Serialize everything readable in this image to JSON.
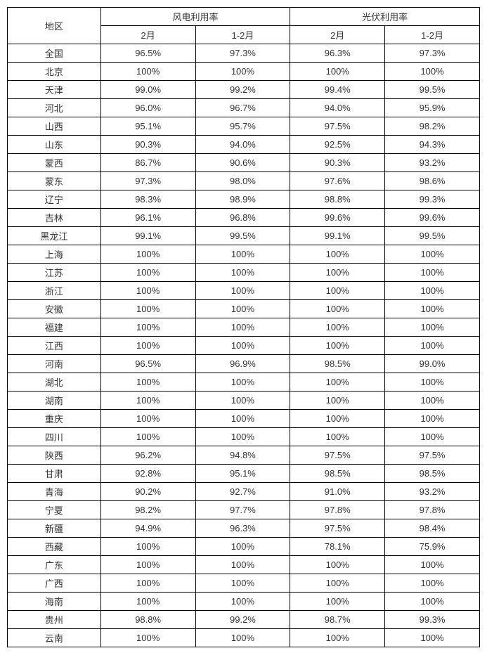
{
  "headers": {
    "region": "地区",
    "wind": "风电利用率",
    "solar": "光伏利用率",
    "feb": "2月",
    "janfeb": "1-2月"
  },
  "rows": [
    {
      "region": "全国",
      "wind_feb": "96.5%",
      "wind_janfeb": "97.3%",
      "solar_feb": "96.3%",
      "solar_janfeb": "97.3%"
    },
    {
      "region": "北京",
      "wind_feb": "100%",
      "wind_janfeb": "100%",
      "solar_feb": "100%",
      "solar_janfeb": "100%"
    },
    {
      "region": "天津",
      "wind_feb": "99.0%",
      "wind_janfeb": "99.2%",
      "solar_feb": "99.4%",
      "solar_janfeb": "99.5%"
    },
    {
      "region": "河北",
      "wind_feb": "96.0%",
      "wind_janfeb": "96.7%",
      "solar_feb": "94.0%",
      "solar_janfeb": "95.9%"
    },
    {
      "region": "山西",
      "wind_feb": "95.1%",
      "wind_janfeb": "95.7%",
      "solar_feb": "97.5%",
      "solar_janfeb": "98.2%"
    },
    {
      "region": "山东",
      "wind_feb": "90.3%",
      "wind_janfeb": "94.0%",
      "solar_feb": "92.5%",
      "solar_janfeb": "94.3%"
    },
    {
      "region": "蒙西",
      "wind_feb": "86.7%",
      "wind_janfeb": "90.6%",
      "solar_feb": "90.3%",
      "solar_janfeb": "93.2%"
    },
    {
      "region": "蒙东",
      "wind_feb": "97.3%",
      "wind_janfeb": "98.0%",
      "solar_feb": "97.6%",
      "solar_janfeb": "98.6%"
    },
    {
      "region": "辽宁",
      "wind_feb": "98.3%",
      "wind_janfeb": "98.9%",
      "solar_feb": "98.8%",
      "solar_janfeb": "99.3%"
    },
    {
      "region": "吉林",
      "wind_feb": "96.1%",
      "wind_janfeb": "96.8%",
      "solar_feb": "99.6%",
      "solar_janfeb": "99.6%"
    },
    {
      "region": "黑龙江",
      "wind_feb": "99.1%",
      "wind_janfeb": "99.5%",
      "solar_feb": "99.1%",
      "solar_janfeb": "99.5%"
    },
    {
      "region": "上海",
      "wind_feb": "100%",
      "wind_janfeb": "100%",
      "solar_feb": "100%",
      "solar_janfeb": "100%"
    },
    {
      "region": "江苏",
      "wind_feb": "100%",
      "wind_janfeb": "100%",
      "solar_feb": "100%",
      "solar_janfeb": "100%"
    },
    {
      "region": "浙江",
      "wind_feb": "100%",
      "wind_janfeb": "100%",
      "solar_feb": "100%",
      "solar_janfeb": "100%"
    },
    {
      "region": "安徽",
      "wind_feb": "100%",
      "wind_janfeb": "100%",
      "solar_feb": "100%",
      "solar_janfeb": "100%"
    },
    {
      "region": "福建",
      "wind_feb": "100%",
      "wind_janfeb": "100%",
      "solar_feb": "100%",
      "solar_janfeb": "100%"
    },
    {
      "region": "江西",
      "wind_feb": "100%",
      "wind_janfeb": "100%",
      "solar_feb": "100%",
      "solar_janfeb": "100%"
    },
    {
      "region": "河南",
      "wind_feb": "96.5%",
      "wind_janfeb": "96.9%",
      "solar_feb": "98.5%",
      "solar_janfeb": "99.0%"
    },
    {
      "region": "湖北",
      "wind_feb": "100%",
      "wind_janfeb": "100%",
      "solar_feb": "100%",
      "solar_janfeb": "100%"
    },
    {
      "region": "湖南",
      "wind_feb": "100%",
      "wind_janfeb": "100%",
      "solar_feb": "100%",
      "solar_janfeb": "100%"
    },
    {
      "region": "重庆",
      "wind_feb": "100%",
      "wind_janfeb": "100%",
      "solar_feb": "100%",
      "solar_janfeb": "100%"
    },
    {
      "region": "四川",
      "wind_feb": "100%",
      "wind_janfeb": "100%",
      "solar_feb": "100%",
      "solar_janfeb": "100%"
    },
    {
      "region": "陕西",
      "wind_feb": "96.2%",
      "wind_janfeb": "94.8%",
      "solar_feb": "97.5%",
      "solar_janfeb": "97.5%"
    },
    {
      "region": "甘肃",
      "wind_feb": "92.8%",
      "wind_janfeb": "95.1%",
      "solar_feb": "98.5%",
      "solar_janfeb": "98.5%"
    },
    {
      "region": "青海",
      "wind_feb": "90.2%",
      "wind_janfeb": "92.7%",
      "solar_feb": "91.0%",
      "solar_janfeb": "93.2%"
    },
    {
      "region": "宁夏",
      "wind_feb": "98.2%",
      "wind_janfeb": "97.7%",
      "solar_feb": "97.8%",
      "solar_janfeb": "97.8%"
    },
    {
      "region": "新疆",
      "wind_feb": "94.9%",
      "wind_janfeb": "96.3%",
      "solar_feb": "97.5%",
      "solar_janfeb": "98.4%"
    },
    {
      "region": "西藏",
      "wind_feb": "100%",
      "wind_janfeb": "100%",
      "solar_feb": "78.1%",
      "solar_janfeb": "75.9%"
    },
    {
      "region": "广东",
      "wind_feb": "100%",
      "wind_janfeb": "100%",
      "solar_feb": "100%",
      "solar_janfeb": "100%"
    },
    {
      "region": "广西",
      "wind_feb": "100%",
      "wind_janfeb": "100%",
      "solar_feb": "100%",
      "solar_janfeb": "100%"
    },
    {
      "region": "海南",
      "wind_feb": "100%",
      "wind_janfeb": "100%",
      "solar_feb": "100%",
      "solar_janfeb": "100%"
    },
    {
      "region": "贵州",
      "wind_feb": "98.8%",
      "wind_janfeb": "99.2%",
      "solar_feb": "98.7%",
      "solar_janfeb": "99.3%"
    },
    {
      "region": "云南",
      "wind_feb": "100%",
      "wind_janfeb": "100%",
      "solar_feb": "100%",
      "solar_janfeb": "100%"
    }
  ]
}
